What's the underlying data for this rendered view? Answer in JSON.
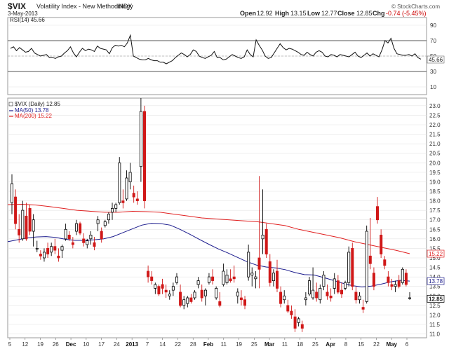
{
  "header": {
    "title": "$VIX",
    "subtitle": "Volatility Index - New Methodology",
    "exchange": "INDX",
    "date": "3-May-2013",
    "credit": "© StockCharts.com",
    "open_label": "Open",
    "open": "12.92",
    "high_label": "High",
    "high": "13.15",
    "low_label": "Low",
    "low": "12.77",
    "close_label": "Close",
    "close": "12.85",
    "chg_label": "Chg",
    "chg": "-0.74 (-5.45%)"
  },
  "rsi_panel": {
    "label": "RSI(14) 45.66",
    "current": 45.66,
    "current_label": "45.66",
    "ticks": [
      10,
      30,
      50,
      70,
      90
    ],
    "tick_labels": [
      "10",
      "30",
      "50",
      "70",
      "90"
    ],
    "overbought": 70,
    "oversold": 30,
    "values": [
      60,
      62,
      57,
      61,
      58,
      55,
      56,
      60,
      54,
      52,
      50,
      51,
      52,
      48,
      48,
      47,
      49,
      50,
      54,
      57,
      62,
      54,
      49,
      55,
      60,
      57,
      59,
      58,
      56,
      63,
      60,
      59,
      58,
      53,
      61,
      64,
      63,
      64,
      62,
      67,
      77,
      50,
      48,
      46,
      45,
      45,
      47,
      45,
      44,
      44,
      42,
      42,
      40,
      42,
      44,
      48,
      51,
      54,
      52,
      49,
      52,
      58,
      56,
      50,
      48,
      47,
      49,
      51,
      56,
      48,
      48,
      45,
      46,
      49,
      52,
      50,
      48,
      47,
      49,
      58,
      52,
      49,
      71,
      64,
      58,
      50,
      47,
      48,
      54,
      60,
      66,
      61,
      58,
      60,
      59,
      57,
      55,
      52,
      51,
      55,
      52,
      50,
      55,
      57,
      55,
      50,
      49,
      52,
      51,
      49,
      52,
      51,
      50,
      49,
      52,
      55,
      50,
      48,
      51,
      54,
      50,
      53,
      51,
      49,
      58,
      70,
      67,
      73,
      60,
      53,
      52,
      51,
      51,
      52,
      50,
      53,
      48,
      46
    ]
  },
  "price_panel": {
    "label": "$VIX (Daily) 12.85",
    "ma50_label": "MA(50) 13.78",
    "ma200_label": "MA(200) 15.22",
    "ma50_value": 13.78,
    "ma200_value": 15.22,
    "last_close": 12.85,
    "ma50_tag": "13.78",
    "ma200_tag": "15.22",
    "close_tag": "12.85",
    "colors": {
      "ma50": "#1a1a8c",
      "ma200": "#e02020",
      "down": "#d01818",
      "up_hollow": "#000000"
    },
    "price_ticks": [
      "11.0",
      "11.5",
      "12.0",
      "12.5",
      "13.0",
      "13.5",
      "14.0",
      "14.5",
      "15.0",
      "15.5",
      "16.0",
      "16.5",
      "17.0",
      "17.5",
      "18.0",
      "18.5",
      "19.0",
      "19.5",
      "20.0",
      "20.5",
      "21.0",
      "21.5",
      "22.0",
      "22.5",
      "23.0"
    ],
    "x_labels": [
      "5",
      "12",
      "19",
      "26",
      "Dec",
      "10",
      "17",
      "24",
      "2013",
      "7",
      "14",
      "22",
      "28",
      "Feb",
      "11",
      "19",
      "25",
      "Mar",
      "11",
      "18",
      "25",
      "Apr",
      "8",
      "15",
      "22",
      "May",
      "6"
    ]
  },
  "chart_data": {
    "type": "candlestick",
    "title": "$VIX",
    "subtitle": "Volatility Index - New Methodology",
    "ylim": [
      10.8,
      23.4
    ],
    "ohlc": [
      [
        17.9,
        19.4,
        17.3,
        18.9
      ],
      [
        18.2,
        18.6,
        16.5,
        16.8
      ],
      [
        16.5,
        17.3,
        15.8,
        16.2
      ],
      [
        16.0,
        18.0,
        15.9,
        17.5
      ],
      [
        17.2,
        17.9,
        15.9,
        16.0
      ],
      [
        17.6,
        17.8,
        16.2,
        16.4
      ],
      [
        16.4,
        17.3,
        15.6,
        17.0
      ],
      [
        15.5,
        15.9,
        15.3,
        15.5
      ],
      [
        15.2,
        15.4,
        14.9,
        15.1
      ],
      [
        15.0,
        15.5,
        14.8,
        15.3
      ],
      [
        15.5,
        15.8,
        15.0,
        15.2
      ],
      [
        15.3,
        15.8,
        15.1,
        15.6
      ],
      [
        15.6,
        16.0,
        15.2,
        15.4
      ],
      [
        15.1,
        15.5,
        14.8,
        15.0
      ],
      [
        15.4,
        15.7,
        15.0,
        15.6
      ],
      [
        16.0,
        16.8,
        15.9,
        16.5
      ],
      [
        16.2,
        16.4,
        15.9,
        16.0
      ],
      [
        15.8,
        16.1,
        15.5,
        15.7
      ],
      [
        16.4,
        17.0,
        16.2,
        16.8
      ],
      [
        16.8,
        16.9,
        16.2,
        16.3
      ],
      [
        16.0,
        16.3,
        15.6,
        15.8
      ],
      [
        15.7,
        16.0,
        15.5,
        15.9
      ],
      [
        16.0,
        16.4,
        15.7,
        16.2
      ],
      [
        15.8,
        16.1,
        15.4,
        15.6
      ],
      [
        16.8,
        17.2,
        16.4,
        17.0
      ],
      [
        16.4,
        16.6,
        15.8,
        16.0
      ],
      [
        16.7,
        17.0,
        16.6,
        16.9
      ],
      [
        17.0,
        17.4,
        16.8,
        17.3
      ],
      [
        17.4,
        17.9,
        17.0,
        17.6
      ],
      [
        17.6,
        17.9,
        17.4,
        17.8
      ],
      [
        17.9,
        20.3,
        17.8,
        20.0
      ],
      [
        18.0,
        18.6,
        17.6,
        17.9
      ],
      [
        18.1,
        19.6,
        18.0,
        19.2
      ],
      [
        19.0,
        20.0,
        18.6,
        19.5
      ],
      [
        18.4,
        18.8,
        17.9,
        18.2
      ],
      [
        18.1,
        18.5,
        17.8,
        18.0
      ],
      [
        19.8,
        23.4,
        19.0,
        22.7
      ],
      [
        22.7,
        23.0,
        17.6,
        18.0
      ],
      [
        14.3,
        14.6,
        13.7,
        14.0
      ],
      [
        14.0,
        14.3,
        13.6,
        13.8
      ],
      [
        13.4,
        13.7,
        13.1,
        13.6
      ],
      [
        13.5,
        13.6,
        13.0,
        13.1
      ],
      [
        13.6,
        13.9,
        13.1,
        13.4
      ],
      [
        13.3,
        13.6,
        12.9,
        13.2
      ],
      [
        13.0,
        13.3,
        12.8,
        13.1
      ],
      [
        13.3,
        13.7,
        13.0,
        13.5
      ],
      [
        13.7,
        14.2,
        13.6,
        14.0
      ],
      [
        13.2,
        13.6,
        12.4,
        12.5
      ],
      [
        12.5,
        13.0,
        12.3,
        12.8
      ],
      [
        12.6,
        13.0,
        12.4,
        12.9
      ],
      [
        12.9,
        13.1,
        12.6,
        12.7
      ],
      [
        12.9,
        13.3,
        12.8,
        13.2
      ],
      [
        13.6,
        14.0,
        13.4,
        13.8
      ],
      [
        13.3,
        13.6,
        12.7,
        12.9
      ],
      [
        13.0,
        13.4,
        12.5,
        13.3
      ],
      [
        13.7,
        14.2,
        13.6,
        14.0
      ],
      [
        14.0,
        14.4,
        13.6,
        13.8
      ],
      [
        12.9,
        13.5,
        12.8,
        13.4
      ],
      [
        12.7,
        13.2,
        12.4,
        12.5
      ],
      [
        13.6,
        14.7,
        13.5,
        14.3
      ],
      [
        13.7,
        14.4,
        13.6,
        14.1
      ],
      [
        13.9,
        14.4,
        13.7,
        13.8
      ],
      [
        14.0,
        14.6,
        13.7,
        13.9
      ],
      [
        13.0,
        13.4,
        12.6,
        13.2
      ],
      [
        12.9,
        13.3,
        12.5,
        12.8
      ],
      [
        12.8,
        13.0,
        12.3,
        12.5
      ],
      [
        14.0,
        15.7,
        13.8,
        15.3
      ],
      [
        14.1,
        14.5,
        13.5,
        14.2
      ],
      [
        13.9,
        14.3,
        13.4,
        14.0
      ],
      [
        15.0,
        19.3,
        13.4,
        14.4
      ],
      [
        16.0,
        18.6,
        15.2,
        16.2
      ],
      [
        16.5,
        16.8,
        15.0,
        15.2
      ],
      [
        14.8,
        15.2,
        13.5,
        13.7
      ],
      [
        13.8,
        14.4,
        13.5,
        14.2
      ],
      [
        14.3,
        14.9,
        13.2,
        13.4
      ],
      [
        13.2,
        13.5,
        12.4,
        12.6
      ],
      [
        12.8,
        13.3,
        12.6,
        13.0
      ],
      [
        12.5,
        12.8,
        12.1,
        12.2
      ],
      [
        12.2,
        12.5,
        11.8,
        12.0
      ],
      [
        11.9,
        12.3,
        11.1,
        11.3
      ],
      [
        11.6,
        11.9,
        11.4,
        11.8
      ],
      [
        11.5,
        11.7,
        11.1,
        11.3
      ],
      [
        12.8,
        13.2,
        12.5,
        12.9
      ],
      [
        13.1,
        14.0,
        13.0,
        13.8
      ],
      [
        12.9,
        14.5,
        12.8,
        13.3
      ],
      [
        13.2,
        13.7,
        12.7,
        12.9
      ],
      [
        12.8,
        13.6,
        12.6,
        13.4
      ],
      [
        13.5,
        14.3,
        13.3,
        14.1
      ],
      [
        13.2,
        13.6,
        12.8,
        13.0
      ],
      [
        13.0,
        13.4,
        12.7,
        12.9
      ],
      [
        13.4,
        14.2,
        13.1,
        13.9
      ],
      [
        13.8,
        14.1,
        13.1,
        13.2
      ],
      [
        13.3,
        13.7,
        12.9,
        13.1
      ],
      [
        13.4,
        13.8,
        13.3,
        13.7
      ],
      [
        13.7,
        15.6,
        13.5,
        15.3
      ],
      [
        15.5,
        15.8,
        13.3,
        13.5
      ],
      [
        13.2,
        13.5,
        12.6,
        12.8
      ],
      [
        12.8,
        13.2,
        12.6,
        13.0
      ],
      [
        12.4,
        12.8,
        12.1,
        12.3
      ],
      [
        12.7,
        16.7,
        12.6,
        16.4
      ],
      [
        15.1,
        17.1,
        14.4,
        14.7
      ],
      [
        14.2,
        14.5,
        13.3,
        13.5
      ],
      [
        17.7,
        18.2,
        16.8,
        17.0
      ],
      [
        16.2,
        16.5,
        15.0,
        15.2
      ],
      [
        14.9,
        15.1,
        14.4,
        14.6
      ],
      [
        14.0,
        14.3,
        13.5,
        13.7
      ],
      [
        13.6,
        13.9,
        13.3,
        13.5
      ],
      [
        13.5,
        13.8,
        13.2,
        13.6
      ],
      [
        13.8,
        14.1,
        13.4,
        13.5
      ],
      [
        13.7,
        14.5,
        13.6,
        14.4
      ],
      [
        14.2,
        14.4,
        13.5,
        13.6
      ],
      [
        12.9,
        13.2,
        12.8,
        12.9
      ]
    ],
    "ma50": [
      15.85,
      15.95,
      16.05,
      16.1,
      16.12,
      16.08,
      15.98,
      15.92,
      15.92,
      15.95,
      16.0,
      16.12,
      16.32,
      16.52,
      16.72,
      16.82,
      16.8,
      16.72,
      16.5,
      16.25,
      15.98,
      15.72,
      15.47,
      15.26,
      15.03,
      14.8,
      14.62,
      14.52,
      14.47,
      14.38,
      14.23,
      14.12,
      14.1,
      13.97,
      13.82,
      13.67,
      13.54,
      13.47,
      13.52,
      13.62,
      13.74,
      13.82,
      13.78
    ],
    "ma200": [
      17.8,
      17.82,
      17.78,
      17.7,
      17.6,
      17.5,
      17.45,
      17.4,
      17.4,
      17.45,
      17.43,
      17.4,
      17.3,
      17.2,
      17.1,
      17.05,
      17.0,
      16.95,
      16.9,
      16.8,
      16.7,
      16.5,
      16.35,
      16.2,
      16.05,
      15.85,
      15.7,
      15.55,
      15.4,
      15.22
    ]
  }
}
